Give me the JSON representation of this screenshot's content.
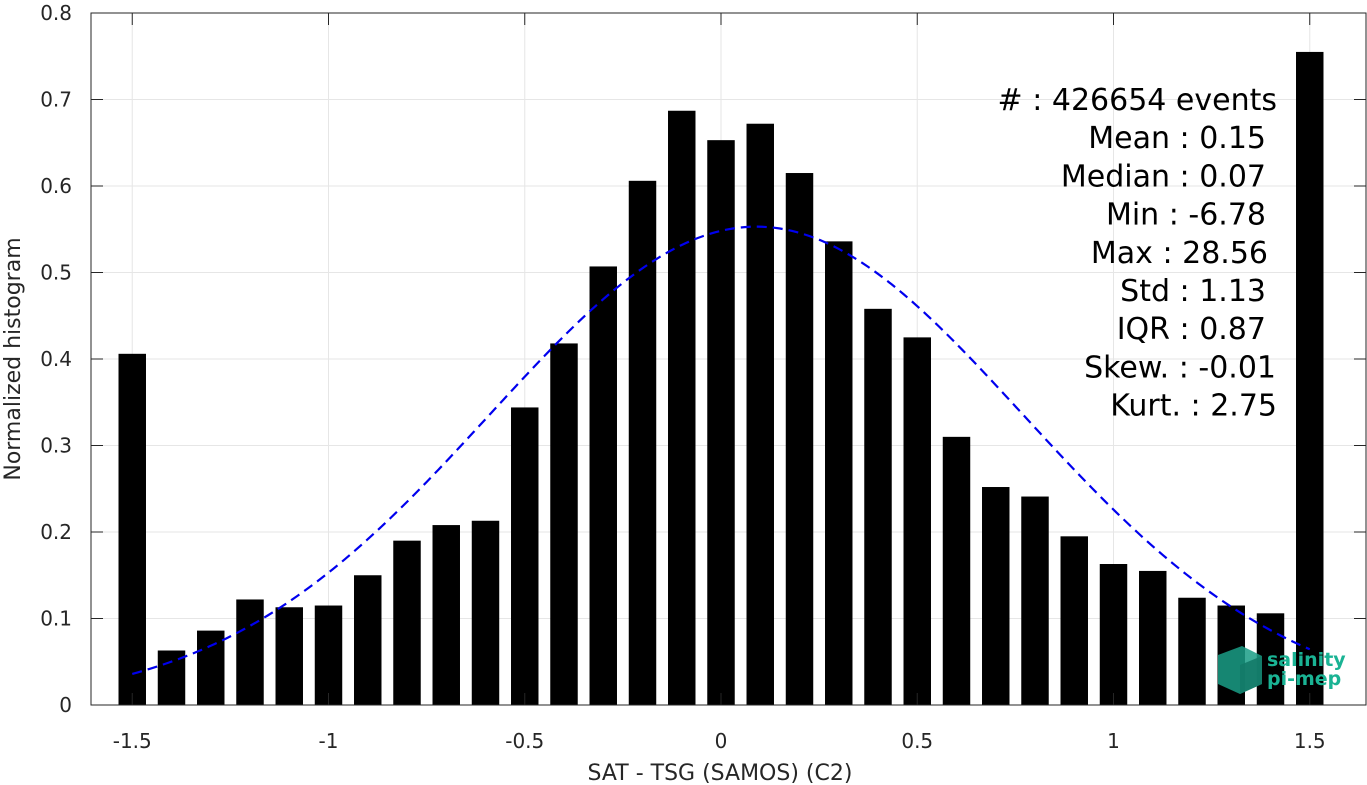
{
  "chart_data": {
    "type": "bar",
    "xlabel": "SAT - TSG (SAMOS) (C2)",
    "ylabel": "Normalized histogram",
    "xlim": [
      -1.6,
      1.6
    ],
    "ylim": [
      0,
      0.8
    ],
    "xticks": [
      -1.5,
      -1,
      -0.5,
      0,
      0.5,
      1,
      1.5
    ],
    "xtick_labels": [
      "-1.5",
      "-1",
      "-0.5",
      "0",
      "0.5",
      "1",
      "1.5"
    ],
    "yticks": [
      0,
      0.1,
      0.2,
      0.3,
      0.4,
      0.5,
      0.6,
      0.7,
      0.8
    ],
    "ytick_labels": [
      "0",
      "0.1",
      "0.2",
      "0.3",
      "0.4",
      "0.5",
      "0.6",
      "0.7",
      "0.8"
    ],
    "grid": true,
    "bar_color": "#000000",
    "bars": {
      "x": [
        -1.5,
        -1.4,
        -1.3,
        -1.2,
        -1.1,
        -1.0,
        -0.9,
        -0.8,
        -0.7,
        -0.6,
        -0.5,
        -0.4,
        -0.3,
        -0.2,
        -0.1,
        0.0,
        0.1,
        0.2,
        0.3,
        0.4,
        0.5,
        0.6,
        0.7,
        0.8,
        0.9,
        1.0,
        1.1,
        1.2,
        1.3,
        1.4,
        1.5
      ],
      "values": [
        0.406,
        0.063,
        0.086,
        0.122,
        0.113,
        0.115,
        0.15,
        0.19,
        0.208,
        0.213,
        0.344,
        0.418,
        0.507,
        0.606,
        0.687,
        0.653,
        0.672,
        0.615,
        0.536,
        0.458,
        0.425,
        0.31,
        0.252,
        0.241,
        0.195,
        0.163,
        0.155,
        0.124,
        0.115,
        0.106,
        0.755
      ],
      "width": 0.07
    },
    "fit_curve": {
      "type": "gaussian",
      "style": "dashed",
      "color": "#0000ee",
      "x_range": [
        -1.5,
        1.5
      ],
      "mean": 0.09,
      "peak": 0.553,
      "sigma": 0.68
    },
    "stats_box": {
      "lines": [
        "#   : 426654 events",
        "Mean : 0.15",
        "Median : 0.07",
        "Min : -6.78",
        "Max : 28.56",
        "Std : 1.13",
        "IQR : 0.87",
        "Skew. : -0.01",
        "Kurt. : 2.75"
      ]
    },
    "logo": {
      "line1": "salinity",
      "line2": "pi-mep",
      "color": "#1ab394"
    }
  }
}
